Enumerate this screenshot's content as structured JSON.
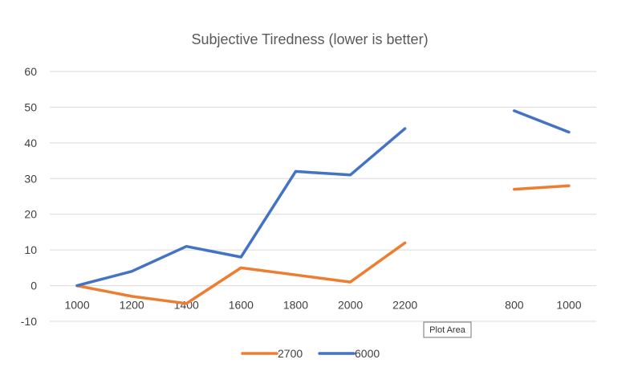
{
  "chart_data": {
    "type": "line",
    "title": "Subjective Tiredness (lower is better)",
    "xlabel": "",
    "ylabel": "",
    "categories": [
      "1000",
      "1200",
      "1400",
      "1600",
      "1800",
      "2000",
      "2200",
      "",
      "800",
      "1000"
    ],
    "ylim": [
      -10,
      60
    ],
    "yticks": [
      "-10",
      "0",
      "10",
      "20",
      "30",
      "40",
      "50",
      "60"
    ],
    "grid": true,
    "legend_position": "bottom",
    "series": [
      {
        "name": "2700",
        "color": "#ED7D31",
        "values": [
          0,
          -3,
          -5,
          5,
          3,
          1,
          12,
          null,
          27,
          28
        ]
      },
      {
        "name": "6000",
        "color": "#4472C4",
        "values": [
          0,
          4,
          11,
          8,
          32,
          31,
          44,
          null,
          49,
          43
        ]
      }
    ]
  },
  "tooltip": {
    "text": "Plot Area"
  }
}
